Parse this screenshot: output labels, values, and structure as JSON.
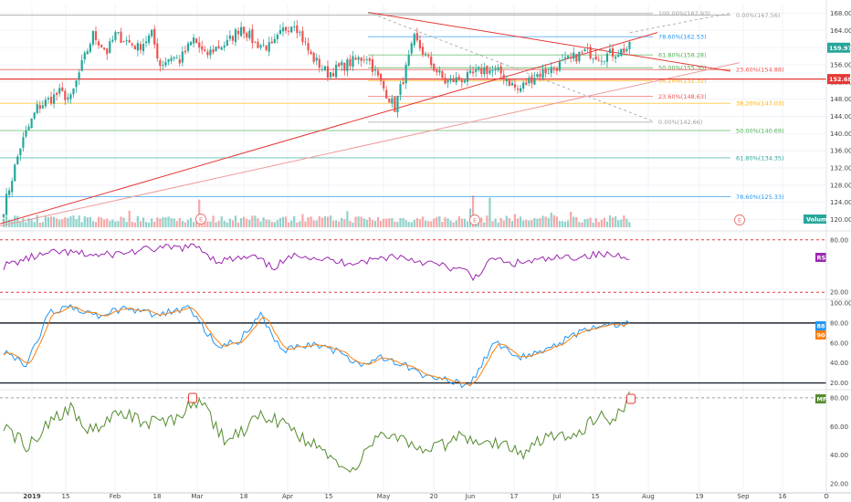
{
  "chart_data": [
    {
      "type": "candlestick",
      "panel": "price",
      "ylim": [
        118,
        170
      ],
      "yticks": [
        120,
        124,
        128,
        132,
        136,
        140,
        144,
        148,
        152,
        156,
        160,
        164,
        168
      ],
      "x_labels": [
        "2019",
        "15",
        "Feb",
        "18",
        "Mar",
        "18",
        "Apr",
        "15",
        "May",
        "20",
        "Jun",
        "17",
        "Jul",
        "15",
        "Aug",
        "19",
        "Sep",
        "16",
        "O"
      ],
      "last_price": 159.97,
      "current_line": 152.68,
      "price_tags": [
        "159.97",
        "152.68"
      ],
      "colors": {
        "up": "#26a69a",
        "down": "#ef5350"
      },
      "fib_right": [
        "100.00%(167.93)",
        "78.60%(162.53)",
        "61.80%(158.28)",
        "50.00%(155.30)",
        "38.20%(152.32)",
        "23.60%(148.63)",
        "0.00%(142.66)"
      ],
      "fib_left": [
        "0.00%(167.56)",
        "23.60%(154.88)",
        "38.20%(147.03)",
        "50.00%(140.69)",
        "61.80%(134.35)",
        "78.60%(125.33)"
      ],
      "volume_label": "Volume",
      "earnings_marker": "E"
    },
    {
      "type": "line",
      "panel": "RSI",
      "label": "RSI",
      "color": "#9c27b0",
      "ylim": [
        15,
        85
      ],
      "levels": [
        80,
        20
      ],
      "ytick_labels": [
        "80.00",
        "20.00"
      ]
    },
    {
      "type": "line",
      "panel": "Stochastic",
      "series_labels": [
        "88",
        "90"
      ],
      "colors": [
        "#2196f3",
        "#ff7f0e"
      ],
      "ylim": [
        15,
        100
      ],
      "levels": [
        80,
        20
      ],
      "ytick_labels": [
        "100.00",
        "80.00",
        "60.00",
        "40.00",
        "20.00"
      ]
    },
    {
      "type": "line",
      "panel": "MFI",
      "label": "MFI",
      "color": "#558b2f",
      "ylim": [
        15,
        85
      ],
      "levels": [
        80,
        20
      ],
      "ytick_labels": [
        "80.00",
        "60.00",
        "40.00",
        "20.00"
      ]
    }
  ]
}
